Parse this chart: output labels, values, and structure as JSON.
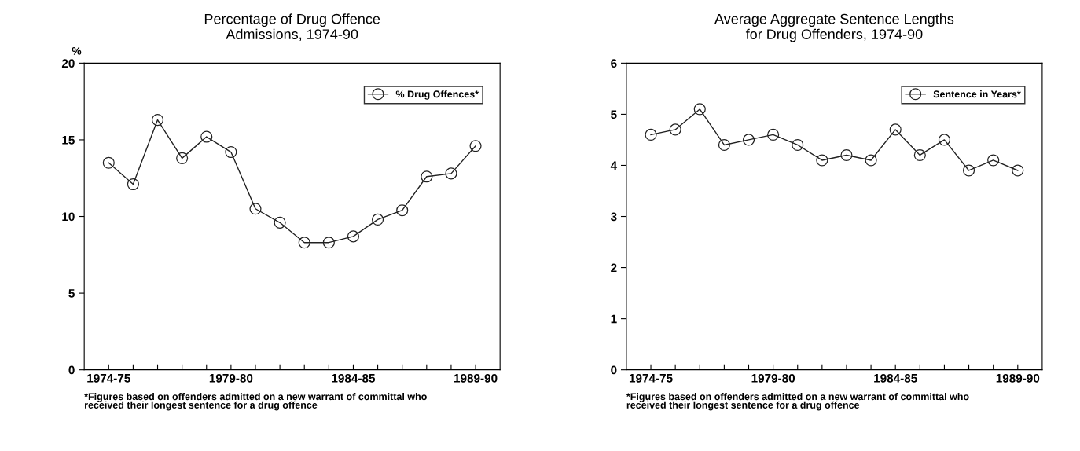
{
  "chart_data": [
    {
      "type": "line",
      "title": "Percentage of Drug Offence\nAdmissions, 1974-90",
      "ylabel": "%",
      "categories": [
        "1974-75",
        null,
        null,
        null,
        null,
        "1979-80",
        null,
        null,
        null,
        null,
        "1984-85",
        null,
        null,
        null,
        null,
        "1989-90"
      ],
      "series": [
        {
          "name": "% Drug Offences*",
          "color": "#222222",
          "values": [
            13.5,
            12.1,
            16.3,
            13.8,
            15.2,
            14.2,
            10.5,
            9.6,
            8.3,
            8.3,
            8.7,
            9.8,
            10.4,
            12.6,
            12.8,
            14.6
          ]
        }
      ],
      "ylim": [
        0,
        20
      ],
      "yticks": [
        0,
        5,
        10,
        15,
        20
      ],
      "grid": false,
      "legend": "top right",
      "marker": "circle",
      "line_style": "solid",
      "annotations": [
        "*Figures based on offenders admitted on a new warrant of committal who\nreceived their longest sentence for a drug offence"
      ]
    },
    {
      "type": "line",
      "title": "Average Aggregate Sentence Lengths\nfor Drug Offenders, 1974-90",
      "categories": [
        "1974-75",
        null,
        null,
        null,
        null,
        "1979-80",
        null,
        null,
        null,
        null,
        "1984-85",
        null,
        null,
        null,
        null,
        "1989-90"
      ],
      "series": [
        {
          "name": "Sentence in Years*",
          "color": "#222222",
          "values": [
            4.6,
            4.7,
            5.1,
            4.4,
            4.5,
            4.6,
            4.4,
            4.1,
            4.2,
            4.1,
            4.7,
            4.2,
            4.5,
            3.9,
            4.1,
            3.9
          ]
        }
      ],
      "ylim": [
        0,
        6
      ],
      "yticks": [
        0,
        1,
        2,
        3,
        4,
        5,
        6
      ],
      "grid": false,
      "legend": "top right",
      "marker": "circle",
      "line_style": "solid",
      "annotations": [
        "*Figures based on offenders admitted on a new warrant of committal who\nreceived their longest sentence for a drug offence"
      ]
    }
  ]
}
